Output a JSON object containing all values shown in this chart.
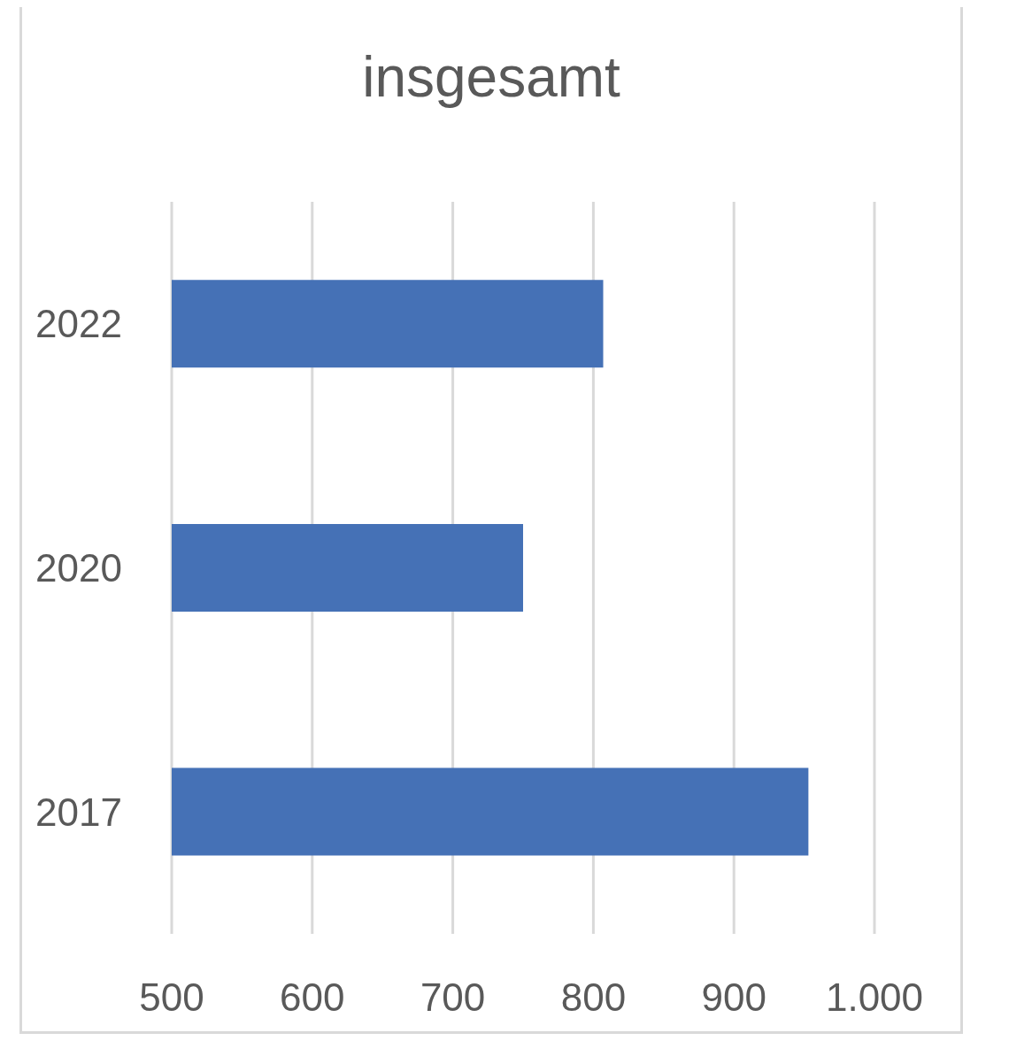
{
  "chart_data": {
    "type": "bar",
    "orientation": "horizontal",
    "title": "insgesamt",
    "categories": [
      "2022",
      "2020",
      "2017"
    ],
    "values": [
      807,
      750,
      953
    ],
    "color": "#4571b6",
    "xlim": [
      500,
      1000
    ],
    "xticks": [
      500,
      600,
      700,
      800,
      900,
      {
        "value": 1000,
        "label": "1.000"
      }
    ],
    "grid": "x"
  }
}
